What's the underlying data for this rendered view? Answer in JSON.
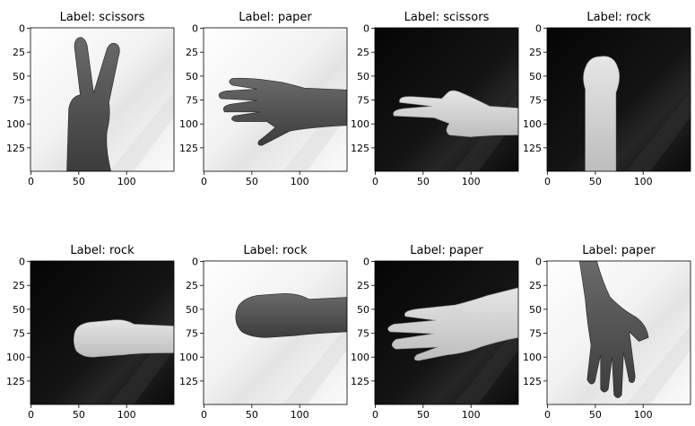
{
  "figure": {
    "background": "#ffffff",
    "axis_color": "#000000",
    "panels": [
      {
        "title": "Label: scissors",
        "background": "light",
        "subject": "hand-scissors-gesture"
      },
      {
        "title": "Label: paper",
        "background": "light",
        "subject": "hand-paper-gesture"
      },
      {
        "title": "Label: scissors",
        "background": "dark",
        "subject": "hand-scissors-gesture"
      },
      {
        "title": "Label: rock",
        "background": "dark",
        "subject": "hand-rock-gesture"
      },
      {
        "title": "Label: rock",
        "background": "dark",
        "subject": "hand-rock-gesture"
      },
      {
        "title": "Label: rock",
        "background": "light",
        "subject": "hand-rock-gesture"
      },
      {
        "title": "Label: paper",
        "background": "dark",
        "subject": "hand-paper-gesture"
      },
      {
        "title": "Label: paper",
        "background": "light",
        "subject": "hand-paper-gesture"
      }
    ],
    "x_ticks": [
      0,
      50,
      100
    ],
    "y_ticks": [
      0,
      25,
      50,
      75,
      100,
      125
    ]
  }
}
